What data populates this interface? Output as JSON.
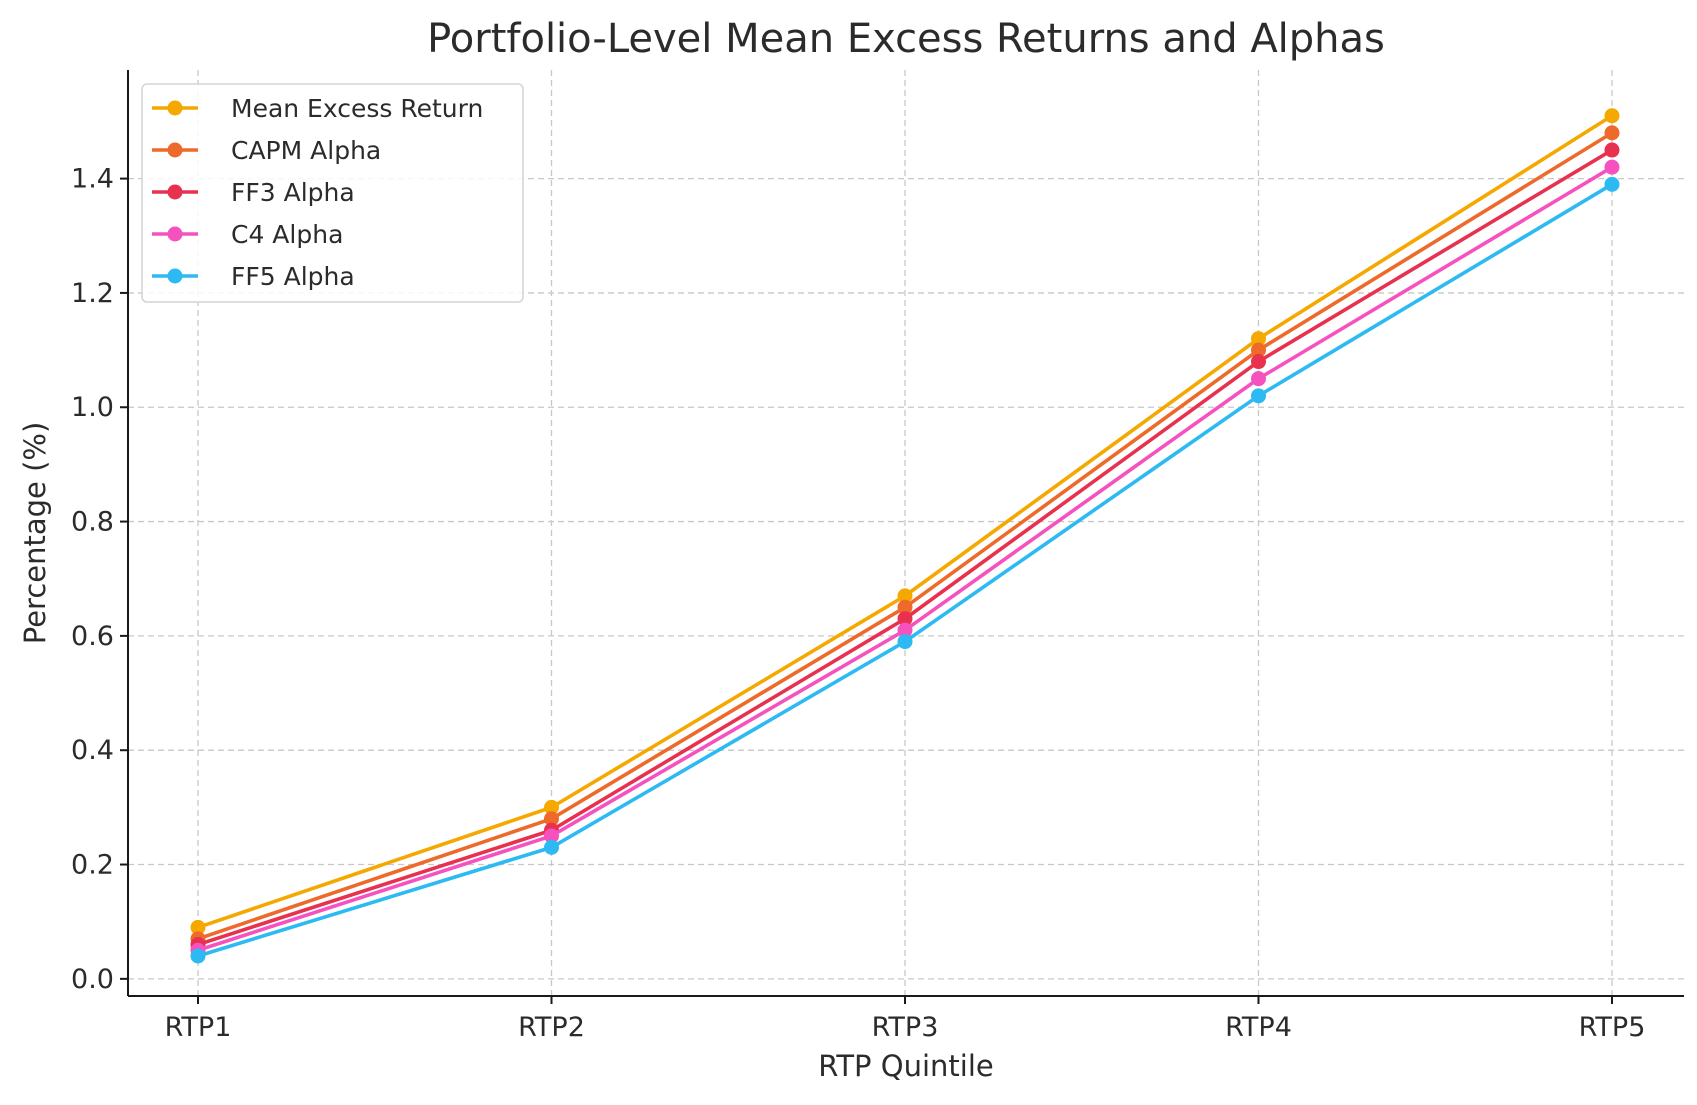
{
  "chart_data": {
    "type": "line",
    "title": "Portfolio-Level Mean Excess Returns and Alphas",
    "xlabel": "RTP Quintile",
    "ylabel": "Percentage (%)",
    "categories": [
      "RTP1",
      "RTP2",
      "RTP3",
      "RTP4",
      "RTP5"
    ],
    "ylim": [
      -0.03,
      1.59
    ],
    "yticks": [
      0.0,
      0.2,
      0.4,
      0.6,
      0.8,
      1.0,
      1.2,
      1.4
    ],
    "ytick_labels": [
      "0.0",
      "0.2",
      "0.4",
      "0.6",
      "0.8",
      "1.0",
      "1.2",
      "1.4"
    ],
    "grid": true,
    "legend_position": "top-left",
    "series": [
      {
        "name": "Mean Excess Return",
        "color": "#F5A800",
        "values": [
          0.09,
          0.3,
          0.67,
          1.12,
          1.51
        ]
      },
      {
        "name": "CAPM Alpha",
        "color": "#EE6A2A",
        "values": [
          0.07,
          0.28,
          0.65,
          1.1,
          1.48
        ]
      },
      {
        "name": "FF3 Alpha",
        "color": "#E8304F",
        "values": [
          0.06,
          0.26,
          0.63,
          1.08,
          1.45
        ]
      },
      {
        "name": "C4 Alpha",
        "color": "#F552C0",
        "values": [
          0.05,
          0.25,
          0.61,
          1.05,
          1.42
        ]
      },
      {
        "name": "FF5 Alpha",
        "color": "#2DBAF2",
        "values": [
          0.04,
          0.23,
          0.59,
          1.02,
          1.39
        ]
      }
    ]
  }
}
